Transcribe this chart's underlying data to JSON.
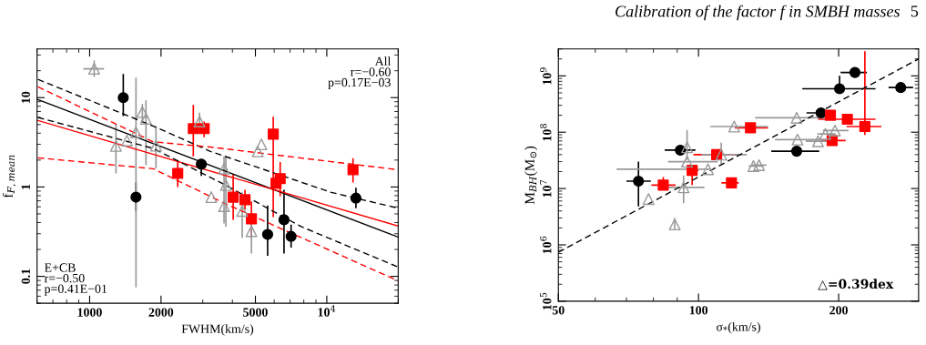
{
  "chart_data": [
    {
      "type": "scatter",
      "xlabel": "FWHM(km/s)",
      "ylabel": "f$_{F,mean}$",
      "log": "xy",
      "xlim": [
        600,
        20000
      ],
      "xticks": [
        1000,
        2000,
        5000,
        {
          "value": 10000,
          "label": "10$^{4}$"
        }
      ],
      "ylim": [
        0.05,
        35
      ],
      "yticks": [
        0.1,
        1,
        10
      ],
      "annotations": [
        "E+CB\nr=−0.50\np=0.41E−01",
        "All\nr=−0.60\np=0.17E−03"
      ],
      "series": [
        {
          "color": "#000000",
          "marker": "circle",
          "x": [
            1386,
            1568,
            2957,
            5630,
            6600,
            7070,
            13270
          ],
          "values": [
            10.0,
            0.77,
            1.8,
            0.295,
            0.43,
            0.28,
            0.75
          ],
          "errors": [
            [
              6.2,
              18.4
            ],
            [
              0.54,
              1.12
            ],
            [
              1.33,
              2.07
            ],
            [
              0.17,
              0.62
            ],
            [
              0.18,
              0.93
            ],
            [
              0.21,
              0.38
            ],
            [
              0.58,
              0.98
            ]
          ]
        },
        {
          "color": "#ff0000",
          "marker": "square",
          "x": [
            2352,
            2736,
            3040,
            4030,
            4520,
            4810,
            5946,
            6110,
            6360,
            12900
          ],
          "values": [
            1.42,
            4.5,
            4.5,
            0.77,
            0.72,
            0.44,
            3.9,
            1.1,
            1.24,
            1.56
          ],
          "errors": [
            [
              1.0,
              1.9
            ],
            [
              2.2,
              8.3
            ],
            [
              3.6,
              5.4
            ],
            [
              0.43,
              1.39
            ],
            [
              0.56,
              0.93
            ],
            [
              0.27,
              0.69
            ],
            [
              0.46,
              6.1
            ],
            null,
            [
              0.79,
              1.9
            ],
            [
              1.12,
              2.1
            ]
          ]
        },
        {
          "color": "#999999",
          "marker": "triangle",
          "x": [
            1045,
            1291,
            1436,
            1568,
            1668,
            1728,
            1904,
            2906,
            3259,
            3687,
            3754,
            3687,
            4400,
            4810,
            5115,
            5300
          ],
          "values": [
            21,
            2.88,
            3.3,
            4.1,
            6.9,
            5.8,
            2.9,
            5.4,
            0.77,
            1.6,
            1.05,
            0.61,
            0.54,
            0.32,
            2.5,
            3.0
          ],
          "errors": [
            [
              17,
              26
            ],
            [
              1.42,
              5.06
            ],
            null,
            [
              0.075,
              16.7
            ],
            [
              5.5,
              8.5
            ],
            [
              1.76,
              9.3
            ],
            [
              1.6,
              4.8
            ],
            [
              4.4,
              6.8
            ],
            null,
            [
              0.39,
              2.2
            ],
            [
              0.36,
              2.2
            ],
            null,
            [
              0.27,
              0.87
            ],
            [
              0.18,
              0.5
            ],
            null,
            null
          ],
          "xerrors": [
            [
              940,
              1150
            ],
            null,
            null,
            null,
            null,
            null,
            null,
            null,
            null,
            null,
            null,
            null,
            null,
            null,
            null,
            null
          ]
        },
        {
          "type": "line",
          "color": "#000000",
          "line_style": "solid",
          "x": [
            605,
            20000
          ],
          "values": [
            9.5,
            0.275
          ]
        },
        {
          "type": "line",
          "color": "#ff0000",
          "line_style": "solid",
          "x": [
            605,
            20000
          ],
          "values": [
            5.55,
            0.365
          ]
        },
        {
          "type": "line",
          "color": "#000000",
          "line_style": "dashed",
          "x": [
            605,
            1855,
            3230,
            10450,
            20000
          ],
          "values": [
            16,
            4.8,
            2.5,
            0.87,
            0.58
          ]
        },
        {
          "type": "line",
          "color": "#000000",
          "line_style": "dashed",
          "x": [
            605,
            1855,
            3687,
            7800,
            20000
          ],
          "values": [
            6.0,
            2.7,
            1.07,
            0.36,
            0.127
          ]
        },
        {
          "type": "line",
          "color": "#ff0000",
          "line_style": "dashed",
          "x": [
            605,
            1855,
            3230,
            20000
          ],
          "values": [
            13.2,
            3.2,
            2.8,
            1.56
          ]
        },
        {
          "type": "line",
          "color": "#ff0000",
          "line_style": "dashed",
          "x": [
            605,
            1855,
            3687,
            20000
          ],
          "values": [
            2.12,
            1.6,
            0.66,
            0.089
          ]
        }
      ]
    },
    {
      "type": "scatter",
      "title": "Calibration of the factor f in SMBH masses",
      "xlabel": "σ$_{*}$(km/s)",
      "ylabel": "M$_{BH}$(M$_{⊙}$)",
      "log": "xy",
      "xlim": [
        50,
        297
      ],
      "xticks": [
        50,
        100,
        200
      ],
      "ylim": [
        100000,
        3000000000
      ],
      "yticks": [
        {
          "value": 100000,
          "label": "10$^{5}$"
        },
        {
          "value": 1000000,
          "label": "10$^{6}$"
        },
        {
          "value": 10000000,
          "label": "10$^{7}$"
        },
        {
          "value": 100000000,
          "label": "10$^{8}$"
        },
        {
          "value": 1000000000,
          "label": "10$^{9}$"
        }
      ],
      "annotations": [
        "△=0.39dex",
        "5"
      ],
      "series": [
        {
          "color": "#000000",
          "marker": "circle",
          "x": [
            74.3,
            91.4,
            162.5,
            183.3,
            200.9,
            216.8,
            271.9
          ],
          "values": [
            13500000,
            48000000,
            46000000,
            220000000,
            590000000,
            1150000000,
            620000000
          ],
          "errors": [
            [
              4800000,
              30000000
            ],
            [
              40000000,
              55000000
            ],
            null,
            null,
            [
              590000000,
              1000000000
            ],
            null,
            null
          ],
          "xerrors": [
            [
              70,
              79
            ],
            [
              84.6,
              98.5
            ],
            [
              143.3,
              181.7
            ],
            [
              170.6,
              195.8
            ],
            [
              167.1,
              240
            ],
            [
              201.9,
              230
            ],
            [
              256,
              289
            ]
          ]
        },
        {
          "color": "#ff0000",
          "marker": "square",
          "x": [
            84,
            96.9,
            109.4,
            117.7,
            129.3,
            192,
            208.8,
            193.7,
            227.7
          ],
          "values": [
            11500000,
            21000000,
            40000000,
            12600000,
            120000000,
            200000000,
            170000000,
            71000000,
            126000000
          ],
          "errors": [
            [
              10000000,
              16000000
            ],
            [
              11500000,
              25000000
            ],
            null,
            null,
            null,
            null,
            null,
            null,
            [
              89000000,
              2750000000
            ]
          ],
          "xerrors": [
            [
              79.2,
              89.3
            ],
            [
              94.5,
              100
            ],
            [
              97.5,
              123
            ],
            [
              112,
              122
            ],
            [
              119.7,
              141
            ],
            [
              180.6,
              197
            ],
            [
              180.6,
              240
            ],
            [
              183,
              207
            ],
            [
              208,
              247
            ]
          ]
        },
        {
          "color": "#999999",
          "marker": "triangle",
          "x": [
            78.1,
            88.9,
            94.5,
            94.5,
            92.9,
            104.8,
            111.9,
            119.3,
            131.2,
            134.9,
            162.5,
            163.2,
            180.6,
            187.3,
            196.4
          ],
          "values": [
            6500000,
            2300000,
            54000000,
            30000000,
            10500000,
            22000000,
            40000000,
            126000000,
            25000000,
            26000000,
            180000000,
            74000000,
            69000000,
            93000000,
            107000000
          ],
          "errors": [
            null,
            [
              1900000,
              3000000
            ],
            [
              32000000,
              110000000
            ],
            null,
            [
              5500000,
              17000000
            ],
            null,
            [
              27500000,
              65000000
            ],
            null,
            null,
            null,
            null,
            null,
            null,
            null,
            null
          ],
          "xerrors": [
            null,
            null,
            null,
            [
              86,
              110
            ],
            [
              85,
              103
            ],
            [
              66.7,
              106
            ],
            [
              101.5,
              127
            ],
            [
              106,
              141
            ],
            [
              128,
              138
            ],
            [
              130,
              140
            ],
            [
              132.3,
              196
            ],
            [
              146,
              183
            ],
            [
              170,
              190
            ],
            [
              180,
              197
            ],
            [
              185,
              210
            ]
          ]
        },
        {
          "type": "line",
          "color": "#000000",
          "line_style": "dashed",
          "x": [
            50,
            297
          ],
          "values": [
            740000,
            2000000000
          ]
        }
      ]
    }
  ]
}
